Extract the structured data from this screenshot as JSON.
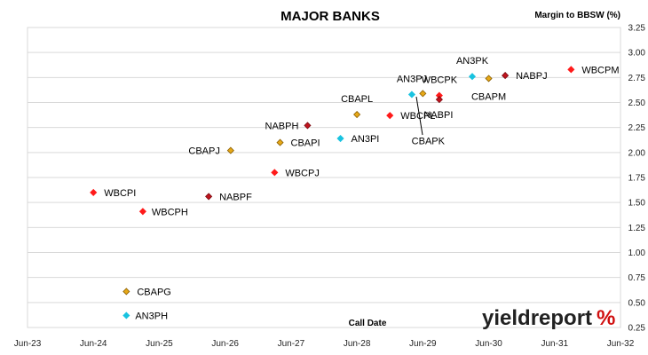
{
  "chart_data": {
    "type": "scatter",
    "title": "MAJOR BANKS",
    "ylabel": "Margin to BBSW (%)",
    "xlabel": "Call Date",
    "x_ticks": [
      "Jun-23",
      "Jun-24",
      "Jun-25",
      "Jun-26",
      "Jun-27",
      "Jun-28",
      "Jun-29",
      "Jun-30",
      "Jun-31",
      "Jun-32"
    ],
    "y_ticks": [
      "0.25",
      "0.50",
      "0.75",
      "1.00",
      "1.25",
      "1.50",
      "1.75",
      "2.00",
      "2.25",
      "2.50",
      "2.75",
      "3.00",
      "3.25"
    ],
    "xlim": [
      "2023-06",
      "2032-06"
    ],
    "ylim": [
      0.25,
      3.25
    ],
    "grid": "horizontal",
    "legend": "none",
    "colors": {
      "CBA": "#e6a817",
      "WBC": "#ff1a1a",
      "NAB": "#c0141e",
      "ANZ": "#19c3e0"
    },
    "points": [
      {
        "name": "WBCPI",
        "x": "2024-06",
        "y": 1.6,
        "bank": "WBC"
      },
      {
        "name": "WBCPH",
        "x": "2025-03",
        "y": 1.41,
        "bank": "WBC"
      },
      {
        "name": "NABPF",
        "x": "2026-03",
        "y": 1.56,
        "bank": "NAB"
      },
      {
        "name": "CBAPJ",
        "x": "2026-07",
        "y": 2.02,
        "bank": "CBA"
      },
      {
        "name": "WBCPJ",
        "x": "2027-03",
        "y": 1.8,
        "bank": "WBC"
      },
      {
        "name": "CBAPI",
        "x": "2027-04",
        "y": 2.1,
        "bank": "CBA"
      },
      {
        "name": "NABPH",
        "x": "2027-09",
        "y": 2.27,
        "bank": "NAB"
      },
      {
        "name": "AN3PI",
        "x": "2028-03",
        "y": 2.14,
        "bank": "ANZ"
      },
      {
        "name": "CBAPL",
        "x": "2028-06",
        "y": 2.38,
        "bank": "CBA"
      },
      {
        "name": "WBCPL",
        "x": "2028-12",
        "y": 2.37,
        "bank": "WBC"
      },
      {
        "name": "AN3PJ",
        "x": "2029-04",
        "y": 2.58,
        "bank": "ANZ"
      },
      {
        "name": "CBAPK",
        "x": "2029-06",
        "y": 2.59,
        "bank": "CBA"
      },
      {
        "name": "WBCPK",
        "x": "2029-09",
        "y": 2.57,
        "bank": "WBC"
      },
      {
        "name": "NABPI",
        "x": "2029-09",
        "y": 2.53,
        "bank": "NAB"
      },
      {
        "name": "AN3PK",
        "x": "2030-03",
        "y": 2.76,
        "bank": "ANZ"
      },
      {
        "name": "CBAPM",
        "x": "2030-06",
        "y": 2.74,
        "bank": "CBA"
      },
      {
        "name": "NABPJ",
        "x": "2030-09",
        "y": 2.77,
        "bank": "NAB"
      },
      {
        "name": "WBCPM",
        "x": "2031-09",
        "y": 2.83,
        "bank": "WBC"
      },
      {
        "name": "CBAPG",
        "x": "2024-12",
        "y": 0.61,
        "bank": "CBA"
      },
      {
        "name": "AN3PH",
        "x": "2024-12",
        "y": 0.37,
        "bank": "ANZ"
      }
    ]
  },
  "logo": {
    "text": "yieldreport",
    "symbol": "%"
  }
}
